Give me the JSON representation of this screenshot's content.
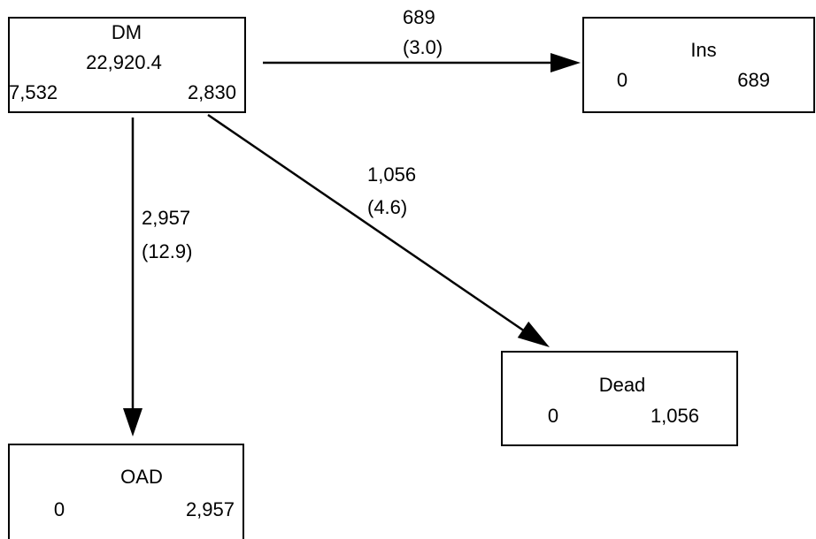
{
  "nodes": [
    {
      "label": "DM",
      "total": "22,920.4",
      "left": "7,532",
      "right": "2,830"
    },
    {
      "label": "Ins",
      "left": "0",
      "right": "689"
    },
    {
      "label": "Dead",
      "left": "0",
      "right": "1,056"
    },
    {
      "label": "OAD",
      "left": "0",
      "right": "2,957"
    }
  ],
  "edges": [
    {
      "count": "689",
      "percent": "(3.0)"
    },
    {
      "count": "1,056",
      "percent": "(4.6)"
    },
    {
      "count": "2,957",
      "percent": "(12.9)"
    }
  ]
}
